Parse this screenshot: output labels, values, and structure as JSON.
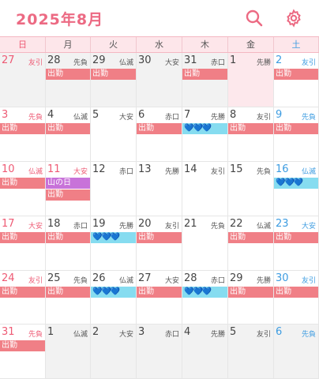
{
  "header": {
    "title": "2025年8月",
    "search_icon": "search-icon",
    "settings_icon": "gear-icon",
    "accent": "#ec6a83"
  },
  "weekdays": [
    "日",
    "月",
    "火",
    "水",
    "木",
    "金",
    "土"
  ],
  "weeks": [
    [
      {
        "day": "27",
        "rokuyo": "友引",
        "other": true,
        "events": []
      },
      {
        "day": "28",
        "rokuyo": "先負",
        "other": true,
        "events": [
          {
            "type": "work",
            "text": "出勤"
          }
        ]
      },
      {
        "day": "29",
        "rokuyo": "仏滅",
        "other": true,
        "events": [
          {
            "type": "work",
            "text": "出勤"
          }
        ]
      },
      {
        "day": "30",
        "rokuyo": "大安",
        "other": true,
        "events": []
      },
      {
        "day": "31",
        "rokuyo": "赤口",
        "other": true,
        "events": [
          {
            "type": "work",
            "text": "出勤"
          }
        ]
      },
      {
        "day": "1",
        "rokuyo": "先勝",
        "today": true,
        "events": []
      },
      {
        "day": "2",
        "rokuyo": "友引",
        "events": [
          {
            "type": "work",
            "text": "出勤"
          }
        ]
      }
    ],
    [
      {
        "day": "3",
        "rokuyo": "先負",
        "events": [
          {
            "type": "work",
            "text": "出勤"
          }
        ]
      },
      {
        "day": "4",
        "rokuyo": "仏滅",
        "events": [
          {
            "type": "work",
            "text": "出勤"
          }
        ]
      },
      {
        "day": "5",
        "rokuyo": "大安",
        "events": []
      },
      {
        "day": "6",
        "rokuyo": "赤口",
        "events": [
          {
            "type": "work",
            "text": "出勤"
          }
        ]
      },
      {
        "day": "7",
        "rokuyo": "先勝",
        "events": [
          {
            "type": "hearts",
            "text": "💙💙💙"
          }
        ]
      },
      {
        "day": "8",
        "rokuyo": "友引",
        "events": [
          {
            "type": "work",
            "text": "出勤"
          }
        ]
      },
      {
        "day": "9",
        "rokuyo": "先負",
        "events": [
          {
            "type": "work",
            "text": "出勤"
          }
        ]
      }
    ],
    [
      {
        "day": "10",
        "rokuyo": "仏滅",
        "events": [
          {
            "type": "work",
            "text": "出勤"
          }
        ]
      },
      {
        "day": "11",
        "rokuyo": "大安",
        "holiday": true,
        "events": [
          {
            "type": "holiday",
            "text": "山の日"
          },
          {
            "type": "work",
            "text": "出勤"
          }
        ]
      },
      {
        "day": "12",
        "rokuyo": "赤口",
        "events": []
      },
      {
        "day": "13",
        "rokuyo": "先勝",
        "events": []
      },
      {
        "day": "14",
        "rokuyo": "友引",
        "events": []
      },
      {
        "day": "15",
        "rokuyo": "先負",
        "events": []
      },
      {
        "day": "16",
        "rokuyo": "仏滅",
        "events": [
          {
            "type": "hearts",
            "text": "💙💙💙"
          }
        ]
      }
    ],
    [
      {
        "day": "17",
        "rokuyo": "大安",
        "events": [
          {
            "type": "work",
            "text": "出勤"
          }
        ]
      },
      {
        "day": "18",
        "rokuyo": "赤口",
        "events": [
          {
            "type": "work",
            "text": "出勤"
          }
        ]
      },
      {
        "day": "19",
        "rokuyo": "先勝",
        "events": [
          {
            "type": "hearts",
            "text": "💙💙💙"
          }
        ]
      },
      {
        "day": "20",
        "rokuyo": "友引",
        "events": [
          {
            "type": "work",
            "text": "出勤"
          }
        ]
      },
      {
        "day": "21",
        "rokuyo": "先負",
        "events": []
      },
      {
        "day": "22",
        "rokuyo": "仏滅",
        "events": [
          {
            "type": "work",
            "text": "出勤"
          }
        ]
      },
      {
        "day": "23",
        "rokuyo": "大安",
        "events": [
          {
            "type": "work",
            "text": "出勤"
          }
        ]
      }
    ],
    [
      {
        "day": "24",
        "rokuyo": "友引",
        "events": [
          {
            "type": "work",
            "text": "出勤"
          }
        ]
      },
      {
        "day": "25",
        "rokuyo": "先負",
        "events": [
          {
            "type": "work",
            "text": "出勤"
          }
        ]
      },
      {
        "day": "26",
        "rokuyo": "仏滅",
        "events": [
          {
            "type": "hearts",
            "text": "💙💙💙"
          }
        ]
      },
      {
        "day": "27",
        "rokuyo": "大安",
        "events": [
          {
            "type": "work",
            "text": "出勤"
          }
        ]
      },
      {
        "day": "28",
        "rokuyo": "赤口",
        "events": [
          {
            "type": "hearts",
            "text": "💙💙💙"
          }
        ]
      },
      {
        "day": "29",
        "rokuyo": "先勝",
        "events": [
          {
            "type": "work",
            "text": "出勤"
          }
        ]
      },
      {
        "day": "30",
        "rokuyo": "友引",
        "events": [
          {
            "type": "work",
            "text": "出勤"
          }
        ]
      }
    ],
    [
      {
        "day": "31",
        "rokuyo": "先負",
        "events": [
          {
            "type": "work",
            "text": "出勤"
          }
        ]
      },
      {
        "day": "1",
        "rokuyo": "仏滅",
        "other": true,
        "events": []
      },
      {
        "day": "2",
        "rokuyo": "大安",
        "other": true,
        "events": []
      },
      {
        "day": "3",
        "rokuyo": "赤口",
        "other": true,
        "events": []
      },
      {
        "day": "4",
        "rokuyo": "先勝",
        "other": true,
        "events": []
      },
      {
        "day": "5",
        "rokuyo": "友引",
        "other": true,
        "events": []
      },
      {
        "day": "6",
        "rokuyo": "先負",
        "other": true,
        "events": []
      }
    ]
  ]
}
